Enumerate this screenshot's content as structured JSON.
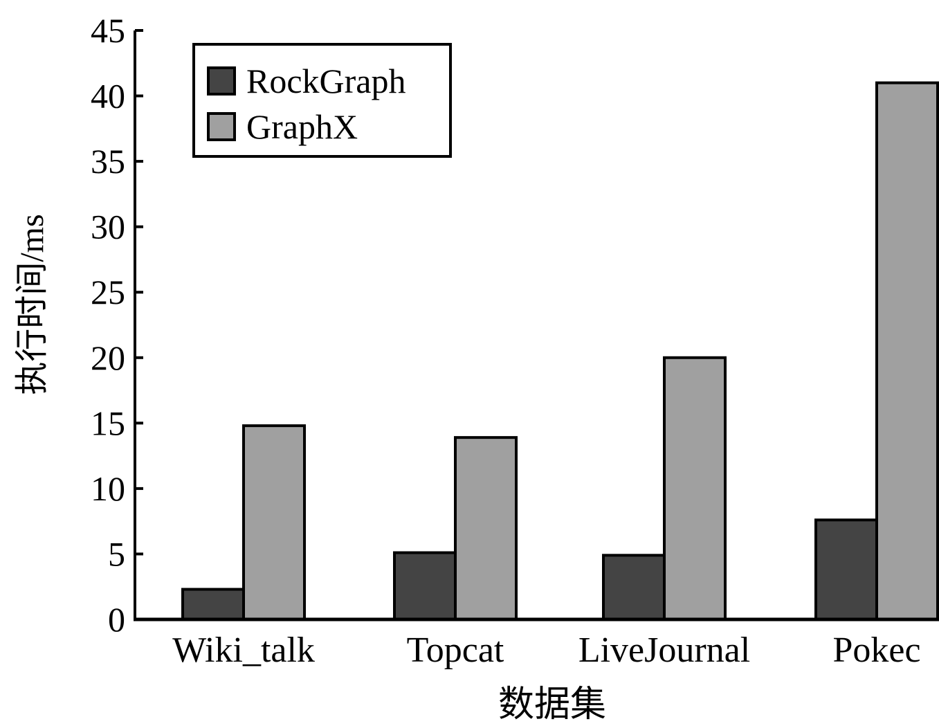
{
  "chart_data": {
    "type": "bar",
    "title": "",
    "xlabel": "数据集",
    "ylabel": "执行时间/ms",
    "categories": [
      "Wiki_talk",
      "Topcat",
      "LiveJournal",
      "Pokec"
    ],
    "series": [
      {
        "name": "RockGraph",
        "values": [
          2.3,
          5.1,
          4.9,
          7.6
        ],
        "color": "#444444"
      },
      {
        "name": "GraphX",
        "values": [
          14.8,
          13.9,
          20.0,
          41.0
        ],
        "color": "#a0a0a0"
      }
    ],
    "ylim": [
      0,
      45
    ],
    "yticks": [
      0,
      5,
      10,
      15,
      20,
      25,
      30,
      35,
      40,
      45
    ],
    "grid": false,
    "legend_position": "top-left"
  }
}
